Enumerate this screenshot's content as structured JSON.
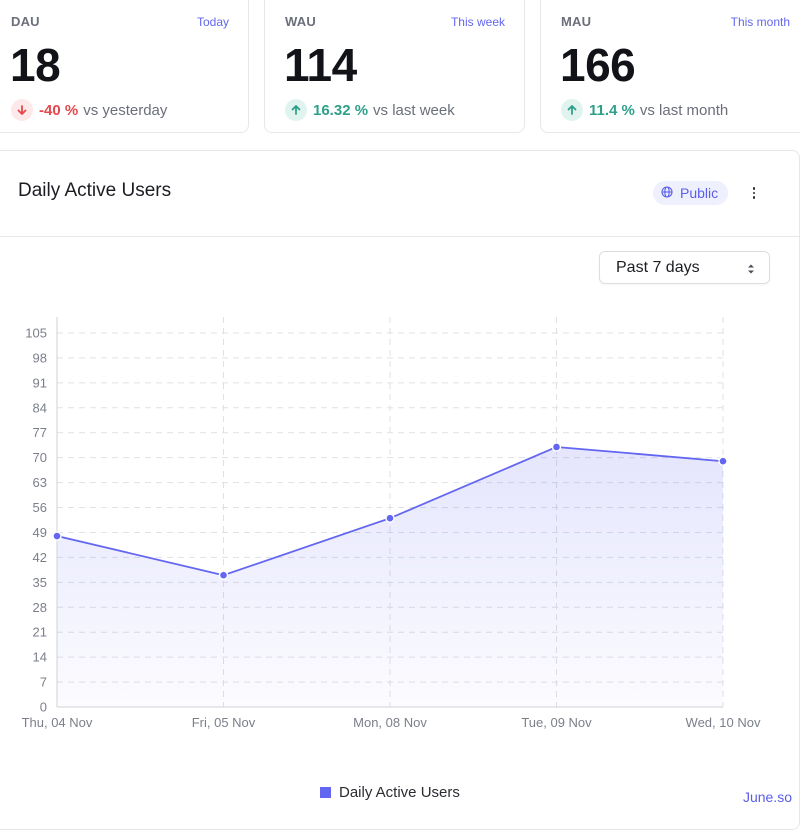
{
  "stats": [
    {
      "label": "DAU",
      "period": "Today",
      "value": "18",
      "change": "-40 %",
      "direction": "down",
      "suffix": "vs yesterday"
    },
    {
      "label": "WAU",
      "period": "This week",
      "value": "114",
      "change": "16.32 %",
      "direction": "up",
      "suffix": "vs last week"
    },
    {
      "label": "MAU",
      "period": "This month",
      "value": "166",
      "change": "11.4 %",
      "direction": "up",
      "suffix": "vs last month"
    }
  ],
  "main": {
    "title": "Daily Active Users",
    "visibility": "Public",
    "range": "Past 7 days"
  },
  "legend": {
    "label": "Daily Active Users"
  },
  "watermark": "June.so",
  "colors": {
    "accent": "#6366f1",
    "negative": "#e5484d",
    "positive": "#2ea08a"
  },
  "chart_data": {
    "type": "area",
    "title": "Daily Active Users",
    "xlabel": "",
    "ylabel": "",
    "categories": [
      "Thu, 04 Nov",
      "Fri, 05 Nov",
      "Mon, 08 Nov",
      "Tue, 09 Nov",
      "Wed, 10 Nov"
    ],
    "series": [
      {
        "name": "Daily Active Users",
        "values": [
          48,
          37,
          53,
          73,
          69
        ]
      }
    ],
    "yticks": [
      0,
      7,
      14,
      21,
      28,
      35,
      42,
      49,
      56,
      63,
      70,
      77,
      84,
      91,
      98,
      105
    ],
    "ylim": [
      0,
      105
    ],
    "grid": true,
    "legend_position": "bottom"
  }
}
